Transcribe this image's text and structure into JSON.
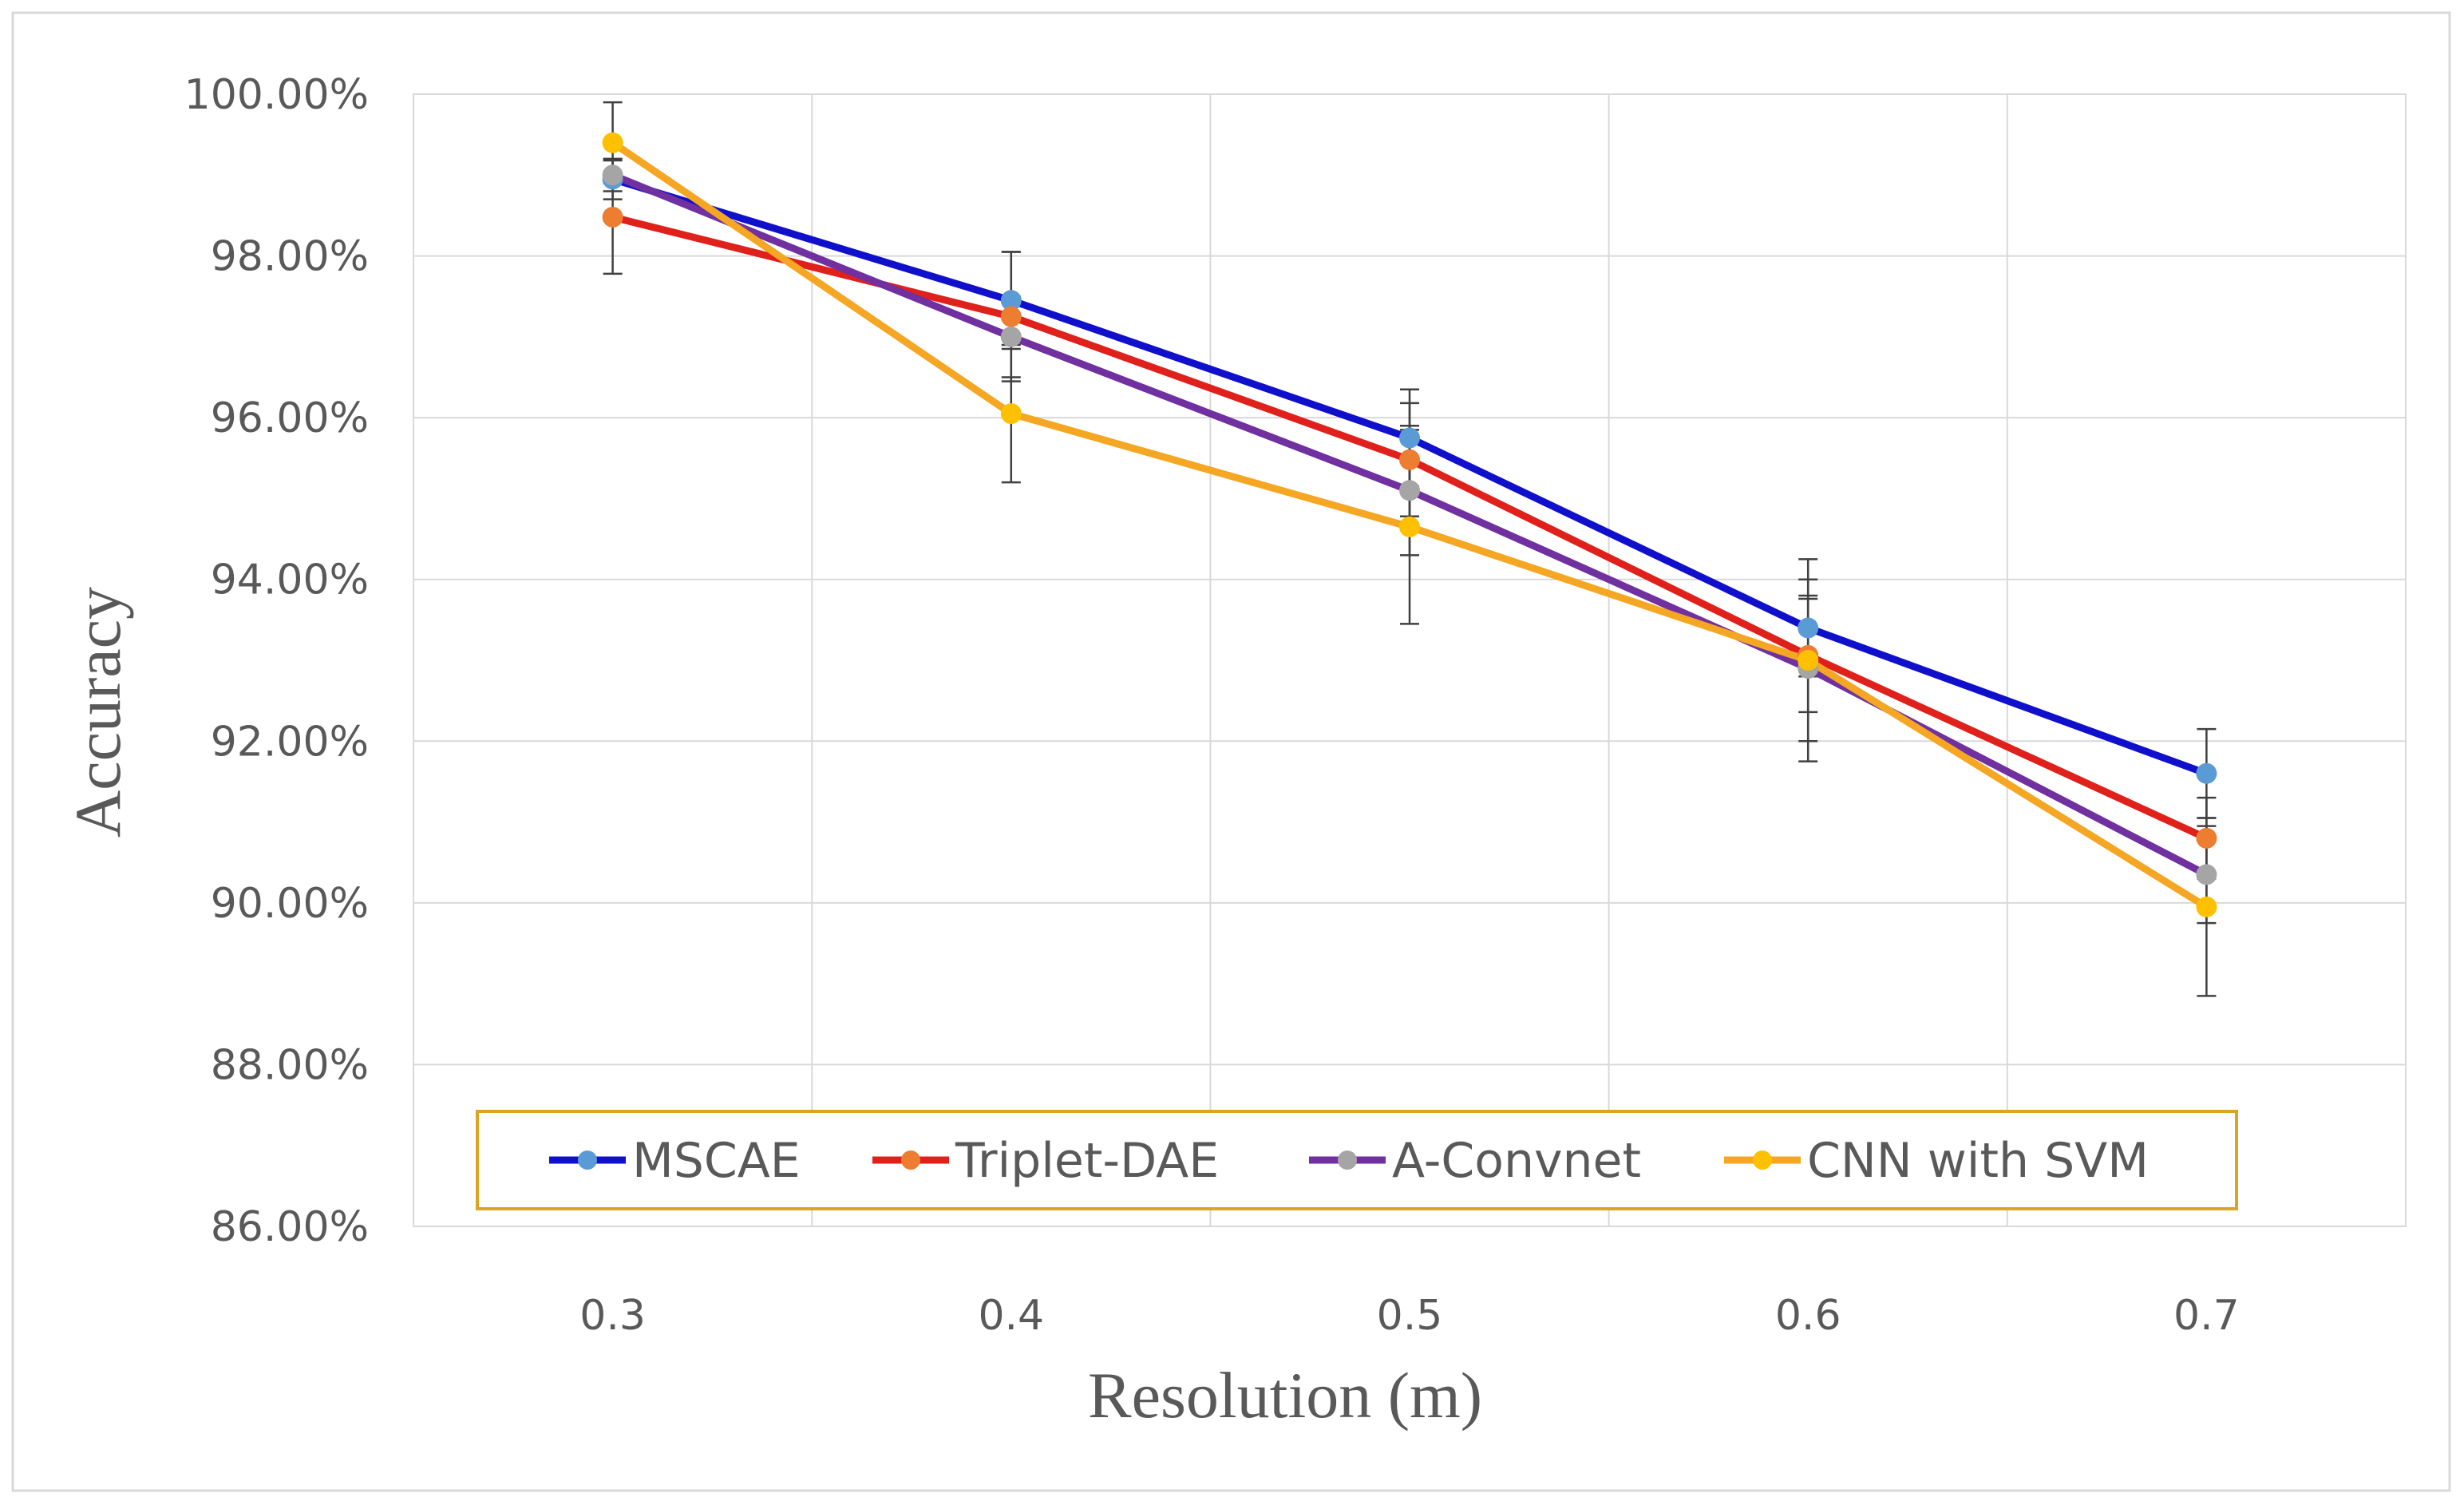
{
  "chart_data": {
    "type": "line",
    "title": "",
    "xlabel": "Resolution (m)",
    "ylabel": "Accuracy",
    "categories": [
      "0.3",
      "0.4",
      "0.5",
      "0.6",
      "0.7"
    ],
    "ylim": [
      86,
      100
    ],
    "ytick_values": [
      86,
      88,
      90,
      92,
      94,
      96,
      98,
      100
    ],
    "ytick_labels": [
      "86.00%",
      "88.00%",
      "90.00%",
      "92.00%",
      "94.00%",
      "96.00%",
      "98.00%",
      "100.00%"
    ],
    "grid": true,
    "legend_position": "bottom-inside",
    "legend_border_color": "#DAA520",
    "series": [
      {
        "name": "MSCAE",
        "color": "#1010CC",
        "marker_color": "#5B9BD5",
        "values": [
          98.95,
          97.45,
          95.75,
          93.4,
          91.6
        ],
        "error": [
          0.25,
          0.6,
          0.6,
          0.6,
          0.55
        ]
      },
      {
        "name": "Triplet-DAE",
        "color": "#E0201B",
        "marker_color": "#ED7D31",
        "values": [
          98.48,
          97.25,
          95.48,
          93.06,
          90.8
        ],
        "error": [
          0.7,
          0.8,
          0.7,
          0.7,
          0.5
        ]
      },
      {
        "name": "A-Convnet",
        "color": "#7030A0",
        "marker_color": "#A5A5A5",
        "values": [
          99.0,
          97.0,
          95.1,
          92.9,
          90.35
        ],
        "error": [
          0.2,
          0.5,
          0.8,
          0.9,
          0.6
        ]
      },
      {
        "name": "CNN with SVM",
        "color": "#F5A623",
        "marker_color": "#FFC000",
        "values": [
          99.4,
          96.05,
          94.65,
          93.0,
          89.95
        ],
        "error": [
          0.5,
          0.85,
          1.2,
          1.25,
          1.1
        ]
      }
    ]
  }
}
